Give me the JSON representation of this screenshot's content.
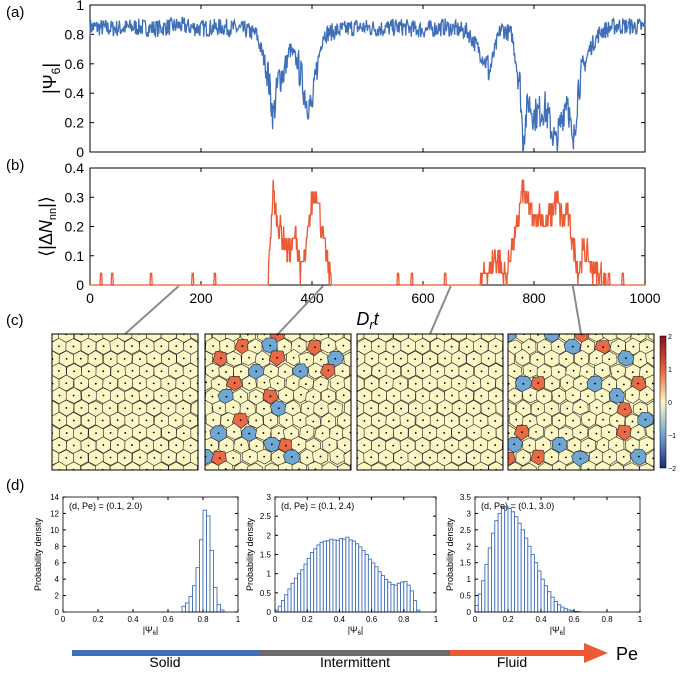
{
  "panel_labels": [
    "(a)",
    "(b)",
    "(c)",
    "(d)"
  ],
  "colors": {
    "psi_series": "#3f6fb9",
    "dn_series": "#eb5a34",
    "cell_fill": "#fdf7c6",
    "cell_plus1": "#ea6a45",
    "cell_minus1": "#6ea6d4",
    "histogram": "#3f6fb9",
    "solid_bar": "#3f6fb9",
    "intermittent_bar": "#6b6b6b",
    "fluid_bar": "#eb5a34",
    "connector": "#8a8a8a"
  },
  "chart_data": [
    {
      "panel": "(a)",
      "type": "line",
      "ylabel_parts": [
        "|Ψ",
        "6",
        "|"
      ],
      "xlim": [
        0,
        1000
      ],
      "ylim": [
        0,
        1
      ],
      "yticks": [
        "0",
        "0.2",
        "0.4",
        "0.6",
        "0.8",
        "1"
      ],
      "series": [
        {
          "x": [
            0,
            40,
            80,
            120,
            160,
            200,
            240,
            280,
            300,
            320,
            330,
            340,
            350,
            360,
            375,
            390,
            400,
            410,
            420,
            440,
            480,
            520,
            560,
            600,
            640,
            680,
            700,
            720,
            730,
            740,
            760,
            775,
            780,
            790,
            800,
            820,
            840,
            860,
            870,
            880,
            900,
            920,
            950,
            1000
          ],
          "y": [
            0.85,
            0.84,
            0.85,
            0.84,
            0.86,
            0.84,
            0.85,
            0.83,
            0.8,
            0.55,
            0.24,
            0.5,
            0.55,
            0.7,
            0.6,
            0.35,
            0.3,
            0.6,
            0.8,
            0.82,
            0.85,
            0.84,
            0.85,
            0.83,
            0.85,
            0.82,
            0.7,
            0.55,
            0.7,
            0.84,
            0.8,
            0.45,
            0.08,
            0.35,
            0.25,
            0.3,
            0.05,
            0.4,
            0.0,
            0.45,
            0.7,
            0.82,
            0.86,
            0.85
          ]
        }
      ]
    },
    {
      "panel": "(b)",
      "type": "line",
      "ylabel_parts": [
        "⟨|Δ",
        "N",
        "nn",
        "|⟩"
      ],
      "xlabel_parts": [
        "D",
        "r",
        "t"
      ],
      "xlim": [
        0,
        1000
      ],
      "ylim": [
        0,
        0.4
      ],
      "xticks": [
        "0",
        "200",
        "400",
        "600",
        "800",
        "1000"
      ],
      "yticks": [
        "0",
        "0.1",
        "0.2",
        "0.3",
        "0.4"
      ],
      "series": [
        {
          "x": [
            0,
            320,
            330,
            340,
            350,
            360,
            370,
            380,
            390,
            400,
            410,
            420,
            430,
            440,
            450,
            700,
            720,
            730,
            740,
            750,
            760,
            770,
            780,
            790,
            800,
            810,
            820,
            830,
            840,
            850,
            860,
            870,
            880,
            890,
            900,
            910,
            920,
            940,
            1000
          ],
          "y": [
            0,
            0,
            0.32,
            0.2,
            0.15,
            0.1,
            0.18,
            0.05,
            0.13,
            0.29,
            0.32,
            0.15,
            0.05,
            0.0,
            0.0,
            0.0,
            0.05,
            0.1,
            0.06,
            0.02,
            0.12,
            0.2,
            0.32,
            0.28,
            0.22,
            0.26,
            0.2,
            0.24,
            0.3,
            0.22,
            0.26,
            0.15,
            0.05,
            0.12,
            0.08,
            0.05,
            0.03,
            0.0,
            0.0
          ],
          "spikes_x": [
            20,
            40,
            110,
            185,
            225,
            555,
            580,
            640,
            935,
            960
          ]
        }
      ]
    },
    {
      "panel": "(d-1)",
      "type": "bar",
      "annotation": "(d, Pe) = (0.1, 2.0)",
      "ylabel": "Probability density",
      "xlabel_parts": [
        "|Ψ",
        "6",
        "|"
      ],
      "xlim": [
        0,
        1
      ],
      "ylim": [
        0,
        14
      ],
      "xticks": [
        "0",
        "0.2",
        "0.4",
        "0.6",
        "0.8",
        "1"
      ],
      "yticks": [
        "0",
        "2",
        "4",
        "6",
        "8",
        "10",
        "12",
        "14"
      ],
      "bin_width": 0.02,
      "values": [
        0.7,
        1.1,
        1.9,
        3.2,
        5.4,
        8.8,
        12.4,
        11.7,
        7.5,
        3.0,
        0.9,
        0.25
      ],
      "bin_start": 0.68
    },
    {
      "panel": "(d-2)",
      "type": "bar",
      "annotation": "(d, Pe) = (0.1, 2.4)",
      "ylabel": "Probability density",
      "xlabel_parts": [
        "|Ψ",
        "6",
        "|"
      ],
      "xlim": [
        0,
        1
      ],
      "ylim": [
        0,
        3
      ],
      "xticks": [
        "0",
        "0.2",
        "0.4",
        "0.6",
        "0.8",
        "1"
      ],
      "yticks": [
        "0",
        "0.5",
        "1",
        "1.5",
        "2",
        "2.5",
        "3"
      ],
      "bin_width": 0.02,
      "bin_start": 0.0,
      "values": [
        0.05,
        0.15,
        0.3,
        0.45,
        0.6,
        0.75,
        0.88,
        1.0,
        1.1,
        1.25,
        1.4,
        1.55,
        1.65,
        1.75,
        1.82,
        1.85,
        1.86,
        1.9,
        1.88,
        1.87,
        1.92,
        1.9,
        1.95,
        1.88,
        1.85,
        1.78,
        1.7,
        1.6,
        1.5,
        1.38,
        1.28,
        1.18,
        1.05,
        0.95,
        0.85,
        0.78,
        0.72,
        0.7,
        0.75,
        0.78,
        0.8,
        0.7,
        0.55,
        0.3,
        0.05
      ]
    },
    {
      "panel": "(d-3)",
      "type": "bar",
      "annotation": "(d, Pe) = (0.1, 3.0)",
      "ylabel": "Probability density",
      "xlabel_parts": [
        "|Ψ",
        "6",
        "|"
      ],
      "xlim": [
        0,
        1
      ],
      "ylim": [
        0,
        3.5
      ],
      "xticks": [
        "0",
        "0.2",
        "0.4",
        "0.6",
        "0.8",
        "1"
      ],
      "yticks": [
        "0",
        "0.5",
        "1",
        "1.5",
        "2",
        "2.5",
        "3",
        "3.5"
      ],
      "bin_width": 0.02,
      "bin_start": 0.0,
      "values": [
        0.2,
        0.55,
        0.95,
        1.45,
        1.95,
        2.4,
        2.78,
        3.0,
        3.18,
        3.2,
        3.15,
        3.05,
        2.9,
        2.7,
        2.5,
        2.25,
        2.0,
        1.75,
        1.5,
        1.25,
        1.0,
        0.8,
        0.62,
        0.45,
        0.32,
        0.22,
        0.15,
        0.1,
        0.06,
        0.04,
        0.02,
        0.01
      ]
    }
  ],
  "snapshots": {
    "times": [
      160,
      420,
      650,
      870
    ],
    "colorbar_ticks": [
      "2",
      "1",
      "0",
      "−1",
      "−2"
    ],
    "highlighted_cells": [
      [],
      [
        {
          "c": 2,
          "r": 1,
          "v": 1
        },
        {
          "c": 5,
          "r": 0,
          "v": 1
        },
        {
          "c": 4,
          "r": 1,
          "v": -1
        },
        {
          "c": 7,
          "r": 1,
          "v": 1
        },
        {
          "c": 1,
          "r": 2,
          "v": 1
        },
        {
          "c": 5,
          "r": 2,
          "v": 1
        },
        {
          "c": 8,
          "r": 3,
          "v": 1
        },
        {
          "c": 3,
          "r": 3,
          "v": -1
        },
        {
          "c": 6,
          "r": 3,
          "v": -1
        },
        {
          "c": 9,
          "r": 2,
          "v": -1
        },
        {
          "c": 1,
          "r": 5,
          "v": -1
        },
        {
          "c": 2,
          "r": 4,
          "v": 1
        },
        {
          "c": 4,
          "r": 5,
          "v": 1
        },
        {
          "c": 5,
          "r": 6,
          "v": -1
        },
        {
          "c": 2,
          "r": 7,
          "v": 1
        },
        {
          "c": 1,
          "r": 8,
          "v": -1
        },
        {
          "c": 3,
          "r": 8,
          "v": -1
        },
        {
          "c": 4,
          "r": 9,
          "v": -1
        },
        {
          "c": 5,
          "r": 9,
          "v": 1
        },
        {
          "c": 0,
          "r": 10,
          "v": -1
        },
        {
          "c": 1,
          "r": 10,
          "v": 1
        },
        {
          "c": 6,
          "r": 10,
          "v": -1
        }
      ],
      [],
      [
        {
          "c": 0,
          "r": 0,
          "v": -1
        },
        {
          "c": 3,
          "r": 0,
          "v": -1
        },
        {
          "c": 5,
          "r": 0,
          "v": 1
        },
        {
          "c": 6,
          "r": 1,
          "v": 1
        },
        {
          "c": 4,
          "r": 1,
          "v": -1
        },
        {
          "c": 8,
          "r": 2,
          "v": -1
        },
        {
          "c": 1,
          "r": 4,
          "v": -1
        },
        {
          "c": 2,
          "r": 4,
          "v": 1
        },
        {
          "c": 6,
          "r": 4,
          "v": -1
        },
        {
          "c": 9,
          "r": 4,
          "v": 1
        },
        {
          "c": 7,
          "r": 5,
          "v": -1
        },
        {
          "c": 8,
          "r": 6,
          "v": 1
        },
        {
          "c": 9,
          "r": 7,
          "v": -1
        },
        {
          "c": 1,
          "r": 8,
          "v": 1
        },
        {
          "c": 0,
          "r": 9,
          "v": -1
        },
        {
          "c": 3,
          "r": 9,
          "v": -1
        },
        {
          "c": 8,
          "r": 8,
          "v": 1
        },
        {
          "c": 0,
          "r": 10,
          "v": 1
        },
        {
          "c": 2,
          "r": 10,
          "v": 1
        },
        {
          "c": 9,
          "r": 10,
          "v": -1
        },
        {
          "c": 5,
          "r": 10,
          "v": -1
        }
      ]
    ]
  },
  "phase_bar": {
    "labels": [
      "Solid",
      "Intermittent",
      "Fluid"
    ],
    "arrow_label": "Pe"
  }
}
